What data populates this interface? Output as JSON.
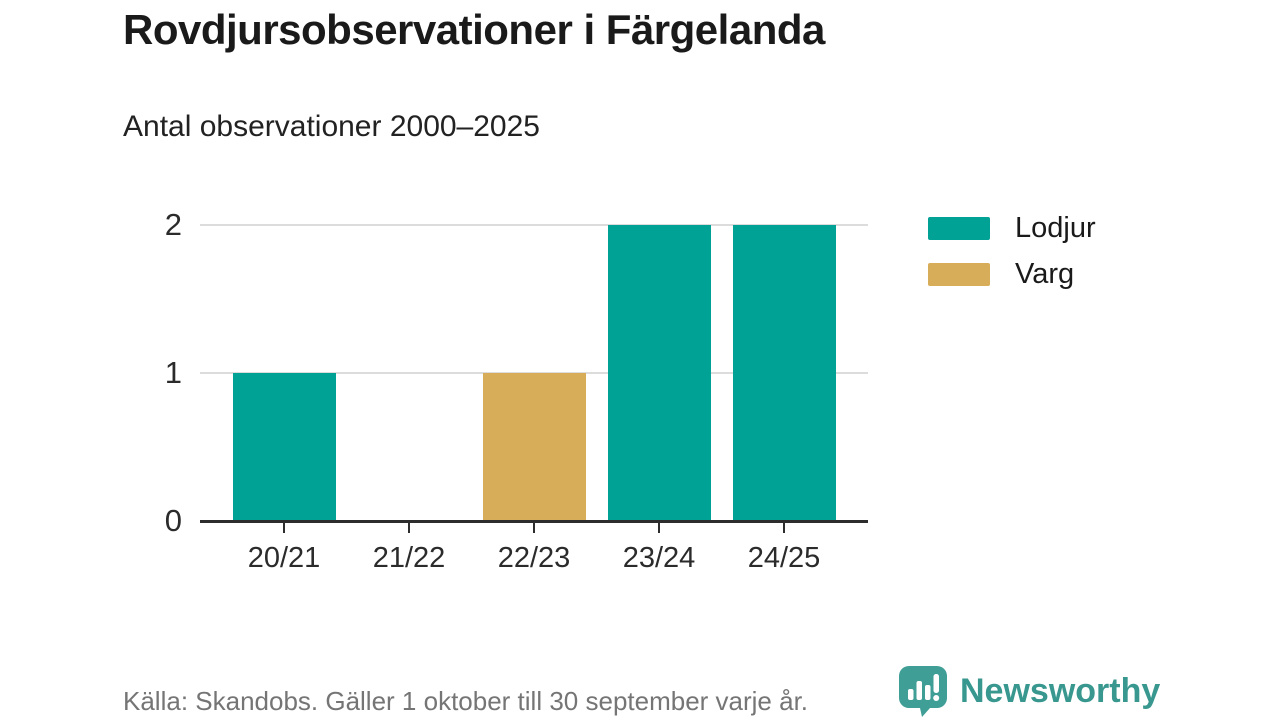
{
  "chart_data": {
    "type": "bar",
    "title": "Rovdjursobservationer i Färgelanda",
    "subtitle": "Antal observationer 2000–2025",
    "xlabel": "",
    "ylabel": "",
    "categories": [
      "20/21",
      "21/22",
      "22/23",
      "23/24",
      "24/25"
    ],
    "series": [
      {
        "name": "Lodjur",
        "color": "#00a296",
        "values": [
          1,
          0,
          0,
          2,
          2
        ]
      },
      {
        "name": "Varg",
        "color": "#d8ad5a",
        "values": [
          0,
          0,
          1,
          0,
          0
        ]
      }
    ],
    "ylim": [
      0,
      2
    ],
    "yticks": [
      0,
      1,
      2
    ],
    "grid": true,
    "legend_position": "right"
  },
  "footer": {
    "source": "Källa: Skandobs. Gäller 1 oktober till 30 september varje år."
  },
  "brand": {
    "name": "Newsworthy",
    "icon": "newsworthy-logo-icon",
    "color": "#38978e",
    "icon_color": "#3f9e96"
  }
}
